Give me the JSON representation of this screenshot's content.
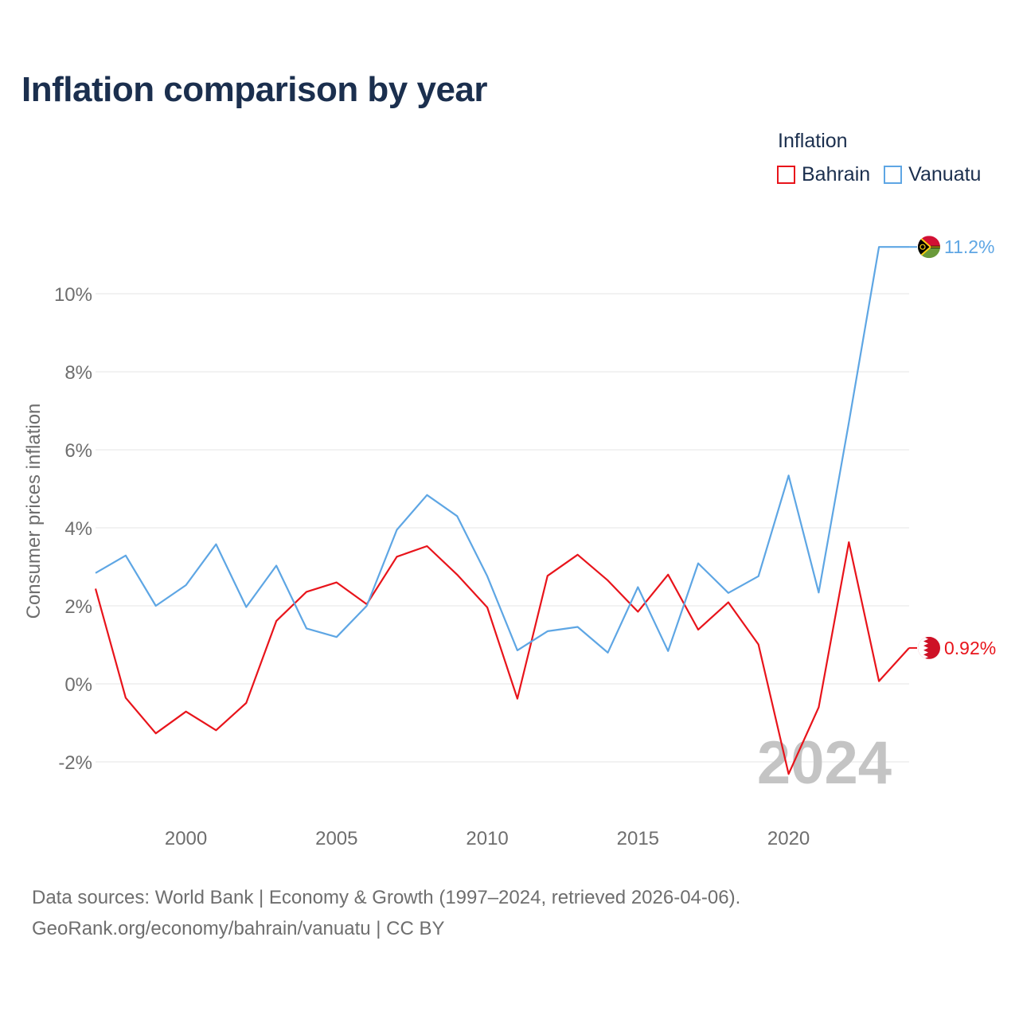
{
  "chart_data": {
    "type": "line",
    "title": "Inflation comparison by year",
    "legend_title": "Inflation",
    "ylabel": "Consumer prices inflation",
    "xlabel": "",
    "xlim": [
      1997,
      2024
    ],
    "ylim": [
      -3,
      12
    ],
    "yticks": [
      -2,
      0,
      2,
      4,
      6,
      8,
      10
    ],
    "ytick_labels": [
      "-2%",
      "0%",
      "2%",
      "4%",
      "6%",
      "8%",
      "10%"
    ],
    "xticks": [
      2000,
      2005,
      2010,
      2015,
      2020
    ],
    "xtick_labels": [
      "2000",
      "2005",
      "2010",
      "2015",
      "2020"
    ],
    "year_watermark": "2024",
    "x": [
      1997,
      1998,
      1999,
      2000,
      2001,
      2002,
      2003,
      2004,
      2005,
      2006,
      2007,
      2008,
      2009,
      2010,
      2011,
      2012,
      2013,
      2014,
      2015,
      2016,
      2017,
      2018,
      2019,
      2020,
      2021,
      2022,
      2023,
      2024
    ],
    "series": [
      {
        "name": "Bahrain",
        "color": "#e8141b",
        "end_label": "0.92%",
        "values": [
          2.44,
          -0.36,
          -1.27,
          -0.71,
          -1.19,
          -0.49,
          1.61,
          2.36,
          2.6,
          2.04,
          3.26,
          3.53,
          2.8,
          1.96,
          -0.38,
          2.77,
          3.31,
          2.65,
          1.85,
          2.8,
          1.39,
          2.09,
          1.01,
          -2.31,
          -0.6,
          3.63,
          0.07,
          0.92
        ]
      },
      {
        "name": "Vanuatu",
        "color": "#5ea6e4",
        "end_label": "11.2%",
        "values": [
          2.84,
          3.29,
          2.0,
          2.53,
          3.58,
          1.97,
          3.03,
          1.42,
          1.2,
          2.0,
          3.95,
          4.84,
          4.3,
          2.76,
          0.86,
          1.35,
          1.46,
          0.8,
          2.48,
          0.84,
          3.09,
          2.33,
          2.76,
          5.34,
          2.34,
          6.7,
          11.2,
          11.2
        ]
      }
    ]
  },
  "source": {
    "line1": "Data sources: World Bank | Economy & Growth (1997–2024, retrieved 2026-04-06).",
    "line2": "GeoRank.org/economy/bahrain/vanuatu | CC BY"
  },
  "colors": {
    "title": "#1b2f4e",
    "axis_text": "#6e6e6e",
    "grid": "#e6e6e6",
    "watermark": "#c4c4c4"
  }
}
